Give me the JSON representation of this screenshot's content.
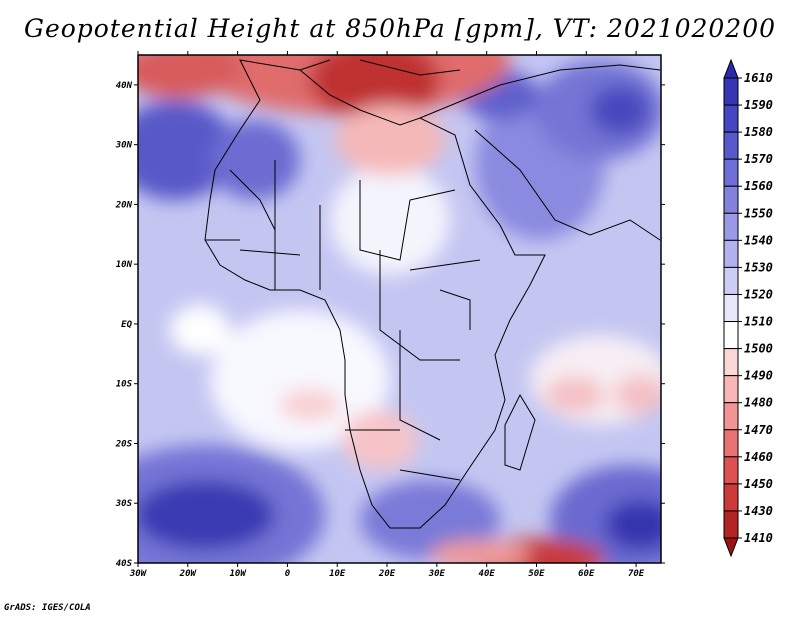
{
  "title": "Geopotential Height at 850hPa [gpm], VT: 2021020200",
  "credit": "GrADS: IGES/COLA",
  "map": {
    "lat_labels": [
      "40N",
      "30N",
      "20N",
      "10N",
      "EQ",
      "10S",
      "20S",
      "30S",
      "40S"
    ],
    "lon_labels": [
      "30W",
      "20W",
      "10W",
      "0",
      "10E",
      "20E",
      "30E",
      "40E",
      "50E",
      "60E",
      "70E"
    ],
    "lat_range": [
      -40,
      45
    ],
    "lon_range": [
      -30,
      75
    ]
  },
  "colorbar": {
    "levels": [
      "1610",
      "1590",
      "1580",
      "1570",
      "1560",
      "1550",
      "1540",
      "1530",
      "1520",
      "1510",
      "1500",
      "1490",
      "1480",
      "1470",
      "1460",
      "1450",
      "1430",
      "1410"
    ],
    "colors": [
      "#2a2aa8",
      "#3535b6",
      "#4646c2",
      "#5959cc",
      "#6e6ed6",
      "#8383de",
      "#9a9ae6",
      "#b2b2ee",
      "#cccdf5",
      "#e8e8fb",
      "#ffffff",
      "#fcd7d7",
      "#f8b6b6",
      "#f29494",
      "#e97272",
      "#dc5252",
      "#cc3a3a",
      "#b52424",
      "#9a1414"
    ]
  }
}
